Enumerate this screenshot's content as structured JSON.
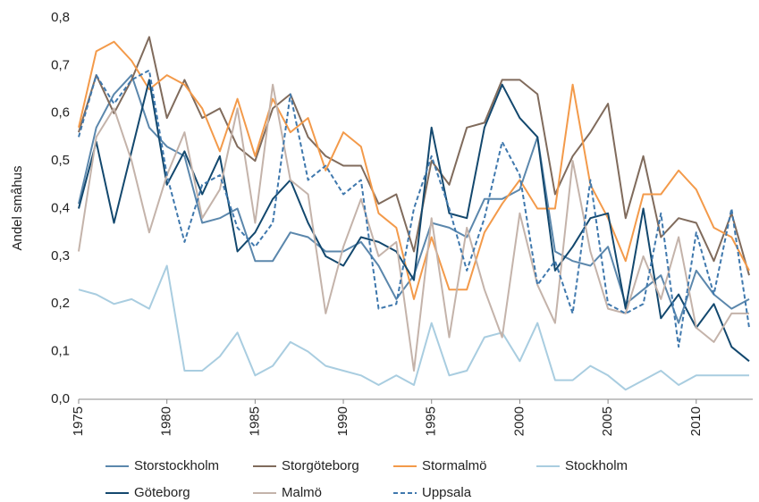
{
  "chart_data": {
    "type": "line",
    "ylabel": "Andel småhus",
    "x": [
      1975,
      1976,
      1977,
      1978,
      1979,
      1980,
      1981,
      1982,
      1983,
      1984,
      1985,
      1986,
      1987,
      1988,
      1989,
      1990,
      1991,
      1992,
      1993,
      1994,
      1995,
      1996,
      1997,
      1998,
      1999,
      2000,
      2001,
      2002,
      2003,
      2004,
      2005,
      2006,
      2007,
      2008,
      2009,
      2010,
      2011,
      2012,
      2013
    ],
    "xlim": [
      1975,
      2013
    ],
    "xticks": [
      1975,
      1980,
      1985,
      1990,
      1995,
      2000,
      2005,
      2010
    ],
    "ylim": [
      0,
      0.8
    ],
    "yticks": [
      {
        "value": 0,
        "label": "0,0"
      },
      {
        "value": 0.1,
        "label": "0,1"
      },
      {
        "value": 0.2,
        "label": "0,2"
      },
      {
        "value": 0.3,
        "label": "0,3"
      },
      {
        "value": 0.4,
        "label": "0,4"
      },
      {
        "value": 0.5,
        "label": "0,5"
      },
      {
        "value": 0.6,
        "label": "0,6"
      },
      {
        "value": 0.7,
        "label": "0,7"
      },
      {
        "value": 0.8,
        "label": "0,8"
      }
    ],
    "grid": false,
    "legend": "bottom",
    "series": [
      {
        "name": "Storstockholm",
        "color": "#5b87ac",
        "values": [
          0.41,
          0.57,
          0.64,
          0.68,
          0.57,
          0.53,
          0.51,
          0.37,
          0.38,
          0.4,
          0.29,
          0.29,
          0.35,
          0.34,
          0.31,
          0.31,
          0.33,
          0.28,
          0.21,
          0.26,
          0.37,
          0.36,
          0.34,
          0.42,
          0.42,
          0.44,
          0.55,
          0.31,
          0.29,
          0.28,
          0.32,
          0.2,
          0.23,
          0.26,
          0.16,
          0.27,
          0.22,
          0.19,
          0.21
        ]
      },
      {
        "name": "Storgöteborg",
        "color": "#806b5c",
        "values": [
          0.56,
          0.68,
          0.6,
          0.67,
          0.76,
          0.59,
          0.67,
          0.59,
          0.61,
          0.53,
          0.5,
          0.61,
          0.64,
          0.55,
          0.51,
          0.49,
          0.49,
          0.41,
          0.43,
          0.31,
          0.5,
          0.45,
          0.57,
          0.58,
          0.67,
          0.67,
          0.64,
          0.43,
          0.51,
          0.56,
          0.62,
          0.38,
          0.51,
          0.34,
          0.38,
          0.37,
          0.29,
          0.39,
          0.26
        ]
      },
      {
        "name": "Stormalmö",
        "color": "#f39a4a",
        "values": [
          0.57,
          0.73,
          0.75,
          0.71,
          0.65,
          0.68,
          0.66,
          0.61,
          0.52,
          0.63,
          0.51,
          0.63,
          0.56,
          0.59,
          0.48,
          0.56,
          0.53,
          0.39,
          0.36,
          0.21,
          0.34,
          0.23,
          0.23,
          0.35,
          0.41,
          0.46,
          0.4,
          0.4,
          0.66,
          0.45,
          0.38,
          0.29,
          0.43,
          0.43,
          0.48,
          0.44,
          0.36,
          0.34,
          0.27
        ]
      },
      {
        "name": "Stockholm",
        "color": "#a9cde0",
        "values": [
          0.23,
          0.22,
          0.2,
          0.21,
          0.19,
          0.28,
          0.06,
          0.06,
          0.09,
          0.14,
          0.05,
          0.07,
          0.12,
          0.1,
          0.07,
          0.06,
          0.05,
          0.03,
          0.05,
          0.03,
          0.16,
          0.05,
          0.06,
          0.13,
          0.14,
          0.08,
          0.16,
          0.04,
          0.04,
          0.07,
          0.05,
          0.02,
          0.04,
          0.06,
          0.03,
          0.05,
          0.05,
          0.05,
          0.05
        ]
      },
      {
        "name": "Göteborg",
        "color": "#13486e",
        "values": [
          0.4,
          0.54,
          0.37,
          0.52,
          0.67,
          0.45,
          0.52,
          0.43,
          0.51,
          0.31,
          0.35,
          0.42,
          0.46,
          0.37,
          0.3,
          0.28,
          0.34,
          0.33,
          0.31,
          0.25,
          0.57,
          0.39,
          0.38,
          0.57,
          0.66,
          0.59,
          0.55,
          0.27,
          0.32,
          0.38,
          0.39,
          0.19,
          0.4,
          0.17,
          0.22,
          0.15,
          0.2,
          0.11,
          0.08
        ]
      },
      {
        "name": "Malmö",
        "color": "#c4b3aa",
        "values": [
          0.31,
          0.55,
          0.61,
          0.5,
          0.35,
          0.47,
          0.56,
          0.38,
          0.44,
          0.61,
          0.37,
          0.66,
          0.46,
          0.43,
          0.18,
          0.32,
          0.42,
          0.3,
          0.33,
          0.06,
          0.38,
          0.13,
          0.36,
          0.23,
          0.13,
          0.39,
          0.24,
          0.16,
          0.5,
          0.31,
          0.19,
          0.18,
          0.3,
          0.21,
          0.34,
          0.15,
          0.12,
          0.18,
          0.18
        ]
      },
      {
        "name": "Uppsala",
        "color": "#3f78ad",
        "dashed": true,
        "values": [
          0.55,
          0.68,
          0.62,
          0.67,
          0.69,
          0.47,
          0.33,
          0.45,
          0.47,
          0.36,
          0.32,
          0.37,
          0.64,
          0.46,
          0.49,
          0.43,
          0.46,
          0.19,
          0.2,
          0.4,
          0.51,
          0.4,
          0.27,
          0.38,
          0.54,
          0.47,
          0.24,
          0.29,
          0.18,
          0.46,
          0.2,
          0.18,
          0.2,
          0.39,
          0.11,
          0.35,
          0.22,
          0.4,
          0.15
        ]
      }
    ]
  }
}
